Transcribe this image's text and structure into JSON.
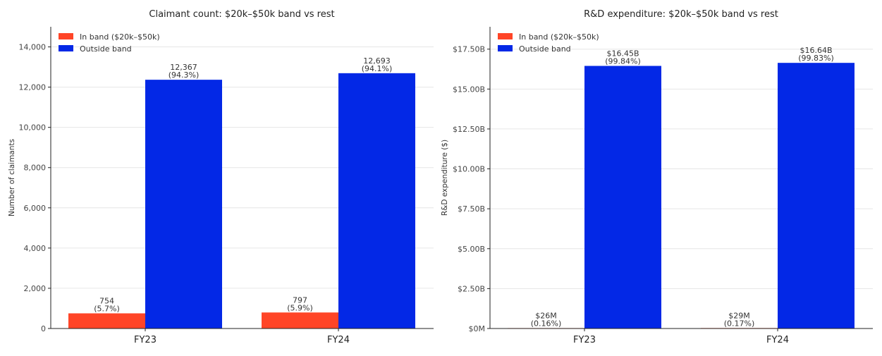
{
  "chart_data": [
    {
      "type": "bar",
      "title": "Claimant count: $20k–$50k band vs rest",
      "xlabel": "",
      "ylabel": "Number of claimants",
      "categories": [
        "FY23",
        "FY24"
      ],
      "ylim": [
        0,
        15000
      ],
      "yticks": [
        0,
        2000,
        4000,
        6000,
        8000,
        10000,
        12000,
        14000
      ],
      "ytick_labels": [
        "0",
        "2,000",
        "4,000",
        "6,000",
        "8,000",
        "10,000",
        "12,000",
        "14,000"
      ],
      "grid": true,
      "legend_position": "top-left",
      "series": [
        {
          "name": "In band ($20k–$50k)",
          "color": "#ff4527",
          "values": [
            754,
            797
          ],
          "labels": [
            "754",
            "797"
          ],
          "sublabels": [
            "(5.7%)",
            "(5.9%)"
          ]
        },
        {
          "name": "Outside band",
          "color": "#0328e6",
          "values": [
            12367,
            12693
          ],
          "labels": [
            "12,367",
            "12,693"
          ],
          "sublabels": [
            "(94.3%)",
            "(94.1%)"
          ]
        }
      ]
    },
    {
      "type": "bar",
      "title": "R&D expenditure: $20k–$50k band vs rest",
      "xlabel": "",
      "ylabel": "R&D expenditure ($)",
      "categories": [
        "FY23",
        "FY24"
      ],
      "ylim": [
        0,
        18900000000
      ],
      "yticks": [
        0,
        2500000000,
        5000000000,
        7500000000,
        10000000000,
        12500000000,
        15000000000,
        17500000000
      ],
      "ytick_labels": [
        "$0M",
        "$2.50B",
        "$5.00B",
        "$7.50B",
        "$10.00B",
        "$12.50B",
        "$15.00B",
        "$17.50B"
      ],
      "grid": true,
      "legend_position": "top-left",
      "series": [
        {
          "name": "In band ($20k–$50k)",
          "color": "#ff4527",
          "values": [
            26000000,
            29000000
          ],
          "labels": [
            "$26M",
            "$29M"
          ],
          "sublabels": [
            "(0.16%)",
            "(0.17%)"
          ]
        },
        {
          "name": "Outside band",
          "color": "#0328e6",
          "values": [
            16450000000,
            16640000000
          ],
          "labels": [
            "$16.45B",
            "$16.64B"
          ],
          "sublabels": [
            "(99.84%)",
            "(99.83%)"
          ]
        }
      ]
    }
  ]
}
